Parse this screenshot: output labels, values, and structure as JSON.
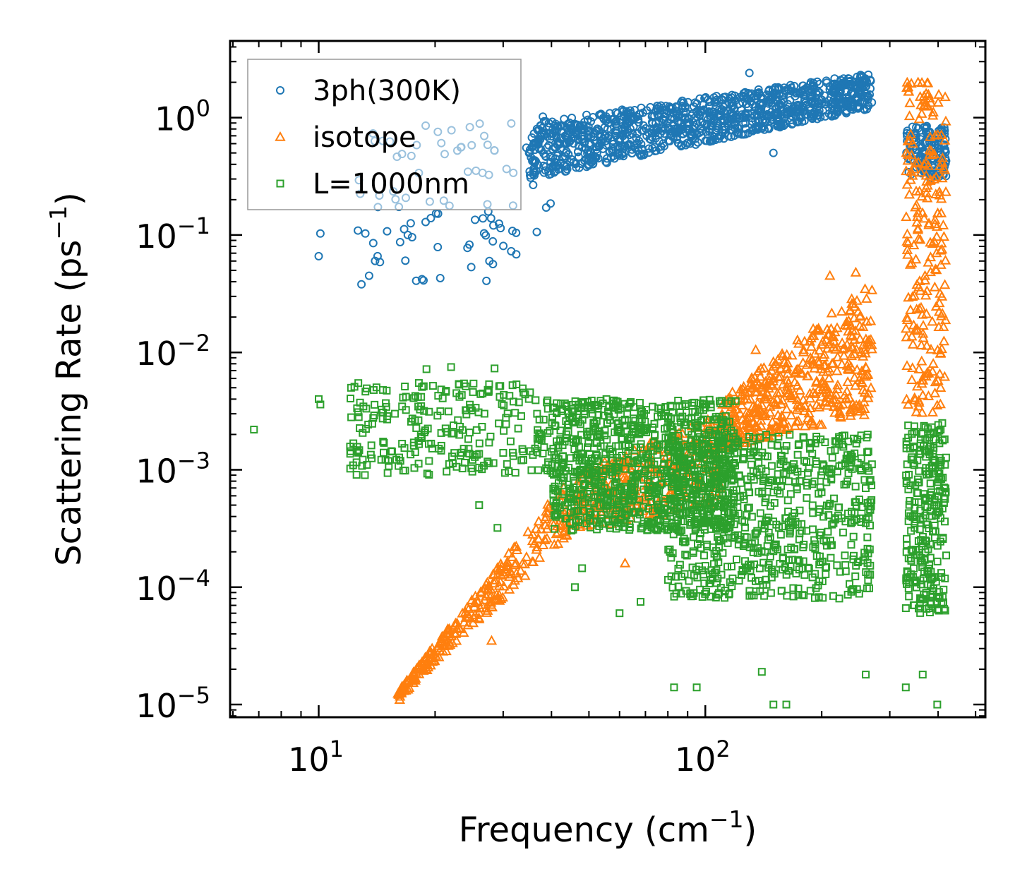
{
  "chart_data": {
    "type": "scatter",
    "x_scale": "log",
    "y_scale": "log",
    "xlabel": "Frequency (cm",
    "xlabel_sup": "−1",
    "xlabel_end": ")",
    "ylabel": "Scattering Rate (ps",
    "ylabel_sup": "−1",
    "ylabel_end": ")",
    "xlim": [
      5.9,
      530
    ],
    "ylim": [
      7.8e-06,
      4.5
    ],
    "x_ticks": [
      {
        "value": 10,
        "base": "10",
        "exp": "1"
      },
      {
        "value": 100,
        "base": "10",
        "exp": "2"
      }
    ],
    "y_ticks": [
      {
        "value": 1,
        "base": "10",
        "exp": "0"
      },
      {
        "value": 0.1,
        "base": "10",
        "exp": "−1"
      },
      {
        "value": 0.01,
        "base": "10",
        "exp": "−2"
      },
      {
        "value": 0.001,
        "base": "10",
        "exp": "−3"
      },
      {
        "value": 0.0001,
        "base": "10",
        "exp": "−4"
      },
      {
        "value": 1e-05,
        "base": "10",
        "exp": "−5"
      }
    ],
    "legend_position": "top-left",
    "series": [
      {
        "name": "3ph(300K)",
        "marker": "circle",
        "color": "#1f77b4",
        "bands": [
          {
            "x": [
              12.5,
              40
            ],
            "y": [
              0.04,
              0.9
            ],
            "n": 90
          },
          {
            "x": [
              35,
              270
            ],
            "y_start": [
              0.3,
              0.9
            ],
            "y_end": [
              1.2,
              2.4
            ],
            "n": 1100
          },
          {
            "x": [
              330,
              420
            ],
            "y": [
              0.3,
              0.85
            ],
            "n": 150
          }
        ],
        "points": [
          {
            "x": 12.9,
            "y": 0.038
          },
          {
            "x": 13.5,
            "y": 0.045
          },
          {
            "x": 10.0,
            "y": 0.066
          },
          {
            "x": 10.1,
            "y": 0.103
          },
          {
            "x": 13.2,
            "y": 0.103
          },
          {
            "x": 18.5,
            "y": 0.042
          },
          {
            "x": 17.0,
            "y": 0.1
          },
          {
            "x": 14.2,
            "y": 0.066
          },
          {
            "x": 38.0,
            "y": 1.02
          },
          {
            "x": 130,
            "y": 2.4
          },
          {
            "x": 95,
            "y": 0.72
          },
          {
            "x": 150,
            "y": 0.5
          }
        ]
      },
      {
        "name": "isotope",
        "marker": "triangle",
        "color": "#ff7f0e",
        "bands": [
          {
            "x": [
              16,
              45
            ],
            "y_start": [
              1.1e-05,
              1.3e-05
            ],
            "y_end": [
              0.0003,
              0.0009
            ],
            "n": 260
          },
          {
            "x": [
              45,
              110
            ],
            "y_start": [
              0.0003,
              0.0009
            ],
            "y_end": [
              0.0005,
              0.003
            ],
            "n": 300
          },
          {
            "x": [
              110,
              270
            ],
            "y_start": [
              0.0015,
              0.004
            ],
            "y_end": [
              0.003,
              0.04
            ],
            "n": 450
          },
          {
            "x": [
              330,
              420
            ],
            "y": [
              0.003,
              2.0
            ],
            "n": 220
          }
        ],
        "points": [
          {
            "x": 16.2,
            "y": 1.1e-05
          },
          {
            "x": 28,
            "y": 3.5e-05
          },
          {
            "x": 62,
            "y": 0.00016
          },
          {
            "x": 135,
            "y": 0.0105
          },
          {
            "x": 210,
            "y": 0.045
          },
          {
            "x": 245,
            "y": 0.048
          },
          {
            "x": 333,
            "y": 1.8
          },
          {
            "x": 355,
            "y": 2.0
          }
        ]
      },
      {
        "name": "L=1000nm",
        "marker": "square",
        "color": "#2ca02c",
        "bands": [
          {
            "x": [
              12,
              40
            ],
            "y": [
              0.0009,
              0.0055
            ],
            "n": 260
          },
          {
            "x": [
              40,
              120
            ],
            "y": [
              0.0003,
              0.004
            ],
            "n": 900
          },
          {
            "x": [
              80,
              270
            ],
            "y": [
              8e-05,
              0.002
            ],
            "n": 700
          },
          {
            "x": [
              330,
              420
            ],
            "y": [
              6e-05,
              0.0025
            ],
            "n": 260
          }
        ],
        "points": [
          {
            "x": 6.8,
            "y": 0.0022
          },
          {
            "x": 10,
            "y": 0.004
          },
          {
            "x": 10.1,
            "y": 0.0036
          },
          {
            "x": 13,
            "y": 0.00122
          },
          {
            "x": 22,
            "y": 0.0075
          },
          {
            "x": 19,
            "y": 0.0072
          },
          {
            "x": 28.5,
            "y": 0.0073
          },
          {
            "x": 26,
            "y": 0.0005
          },
          {
            "x": 29,
            "y": 0.00032
          },
          {
            "x": 48,
            "y": 0.000145
          },
          {
            "x": 46,
            "y": 0.0001
          },
          {
            "x": 60,
            "y": 6e-05
          },
          {
            "x": 68,
            "y": 7.5e-05
          },
          {
            "x": 83,
            "y": 1.4e-05
          },
          {
            "x": 95,
            "y": 1.4e-05
          },
          {
            "x": 150,
            "y": 1e-05
          },
          {
            "x": 162,
            "y": 1e-05
          },
          {
            "x": 140,
            "y": 1.9e-05
          },
          {
            "x": 260,
            "y": 1.8e-05
          },
          {
            "x": 330,
            "y": 1.4e-05
          },
          {
            "x": 365,
            "y": 1.8e-05
          },
          {
            "x": 398,
            "y": 1e-05
          },
          {
            "x": 410,
            "y": 0.0025
          }
        ]
      }
    ]
  }
}
